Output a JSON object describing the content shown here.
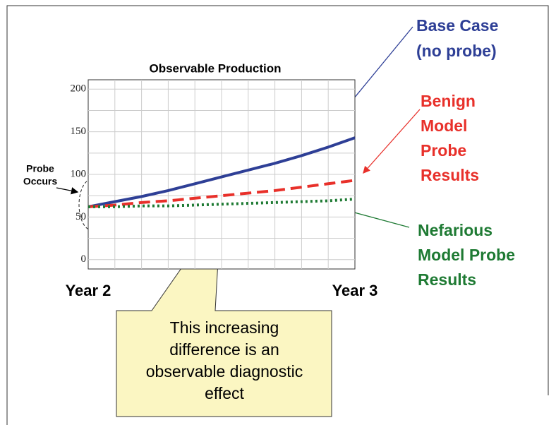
{
  "chart_data": {
    "type": "line",
    "title": "Observable Production",
    "x": [
      0,
      1,
      2,
      3,
      4,
      5,
      6,
      7,
      8,
      9,
      10
    ],
    "xlim": [
      0,
      10
    ],
    "xticks": [
      {
        "value": 0,
        "label": "Year 2"
      },
      {
        "value": 10,
        "label": "Year 3"
      }
    ],
    "xgrid": [
      1,
      2,
      3,
      4,
      5,
      6,
      7,
      8,
      9
    ],
    "ylim": [
      -11,
      211
    ],
    "yticks": [
      0,
      50,
      100,
      150,
      200
    ],
    "minor_yticks": [
      25,
      75,
      125,
      175
    ],
    "grid": true,
    "series": [
      {
        "name_lines": [
          "Base Case",
          "(no probe)"
        ],
        "color": "#2e3f96",
        "dash": "solid",
        "values": [
          62,
          68,
          74,
          81,
          89,
          97,
          105,
          113,
          122,
          132,
          143
        ]
      },
      {
        "name_lines": [
          "Benign",
          "Model",
          "Probe",
          "Results"
        ],
        "color": "#e8302a",
        "dash": "dashed",
        "values": [
          62,
          64,
          67,
          69,
          72,
          75,
          78,
          81,
          85,
          89,
          93
        ]
      },
      {
        "name_lines": [
          "Nefarious",
          "Model Probe",
          "Results"
        ],
        "color": "#1e7a33",
        "dash": "dotted",
        "values": [
          62,
          62,
          63,
          63,
          64,
          65,
          66,
          67,
          68,
          69,
          71
        ]
      }
    ],
    "annotations": {
      "probe": [
        "Probe",
        "Occurs"
      ],
      "callout": [
        "This increasing",
        "difference is an",
        "observable diagnostic",
        "effect"
      ]
    }
  }
}
